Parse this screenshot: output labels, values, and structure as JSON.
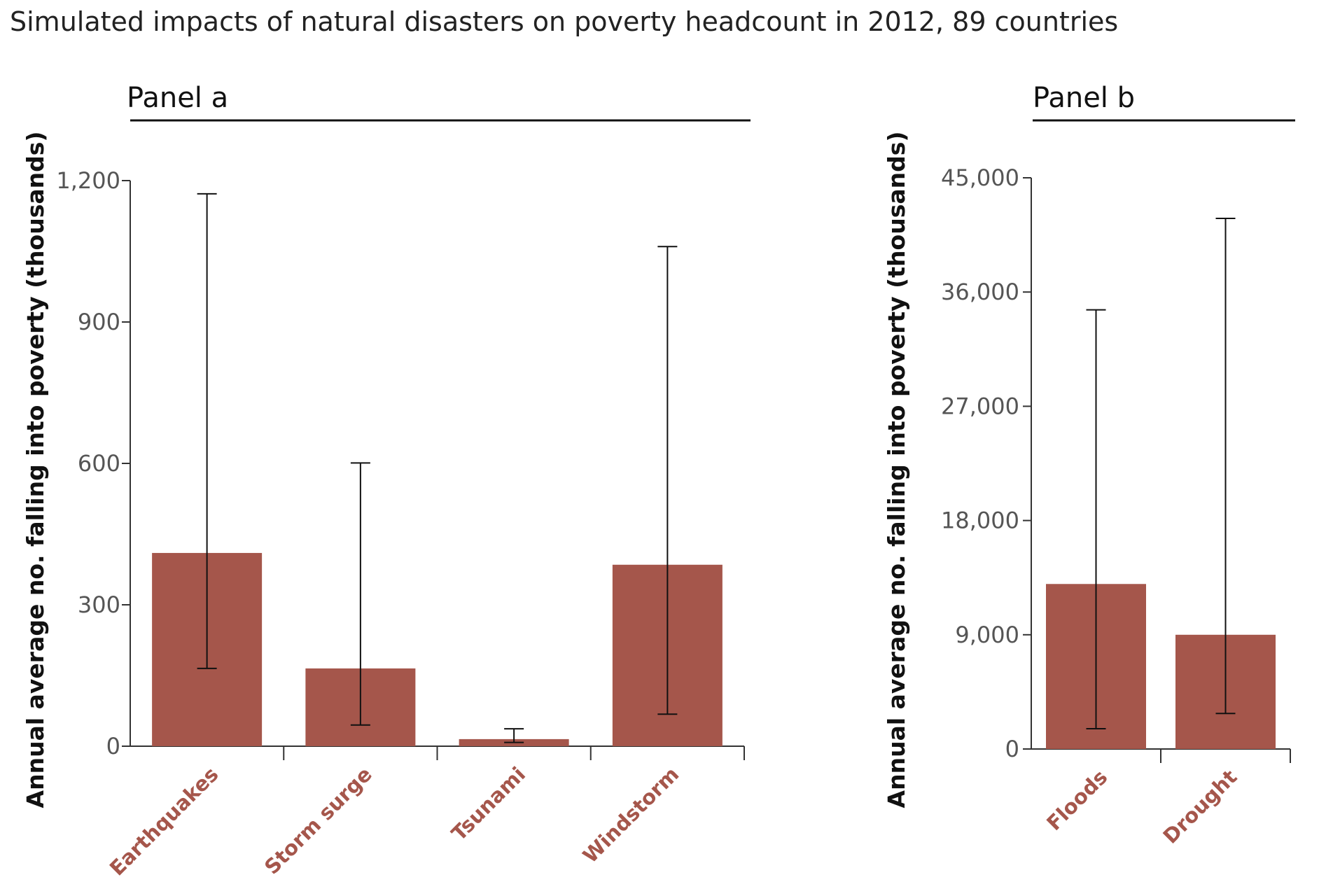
{
  "title": "Simulated impacts of natural disasters on poverty headcount in 2012, 89 countries",
  "colors": {
    "bar": "#a5564b",
    "category_label": "#a5564b",
    "axis": "#333333",
    "tick_label": "#555555"
  },
  "chart_data": [
    {
      "type": "bar",
      "panel_label": "Panel a",
      "ylabel": "Annual average no. falling into poverty (thousands)",
      "categories": [
        "Earthquakes",
        "Storm surge",
        "Tsunami",
        "Windstorm"
      ],
      "values": [
        410,
        165,
        15,
        385
      ],
      "error_low": [
        165,
        45,
        8,
        68
      ],
      "error_high": [
        1172,
        601,
        37,
        1060
      ],
      "ylim": [
        0,
        1200
      ],
      "yticks": [
        0,
        300,
        600,
        900,
        1200
      ],
      "ytick_labels": [
        "0",
        "300",
        "600",
        "900",
        "1,200"
      ],
      "grid": false
    },
    {
      "type": "bar",
      "panel_label": "Panel b",
      "ylabel": "Annual average no. falling into poverty (thousands)",
      "categories": [
        "Floods",
        "Drought"
      ],
      "values": [
        13000,
        9000
      ],
      "error_low": [
        1600,
        2800
      ],
      "error_high": [
        34600,
        41800
      ],
      "ylim": [
        0,
        45000
      ],
      "yticks": [
        0,
        9000,
        18000,
        27000,
        36000,
        45000
      ],
      "ytick_labels": [
        "0",
        "9,000",
        "18,000",
        "27,000",
        "36,000",
        "45,000"
      ],
      "grid": false
    }
  ]
}
